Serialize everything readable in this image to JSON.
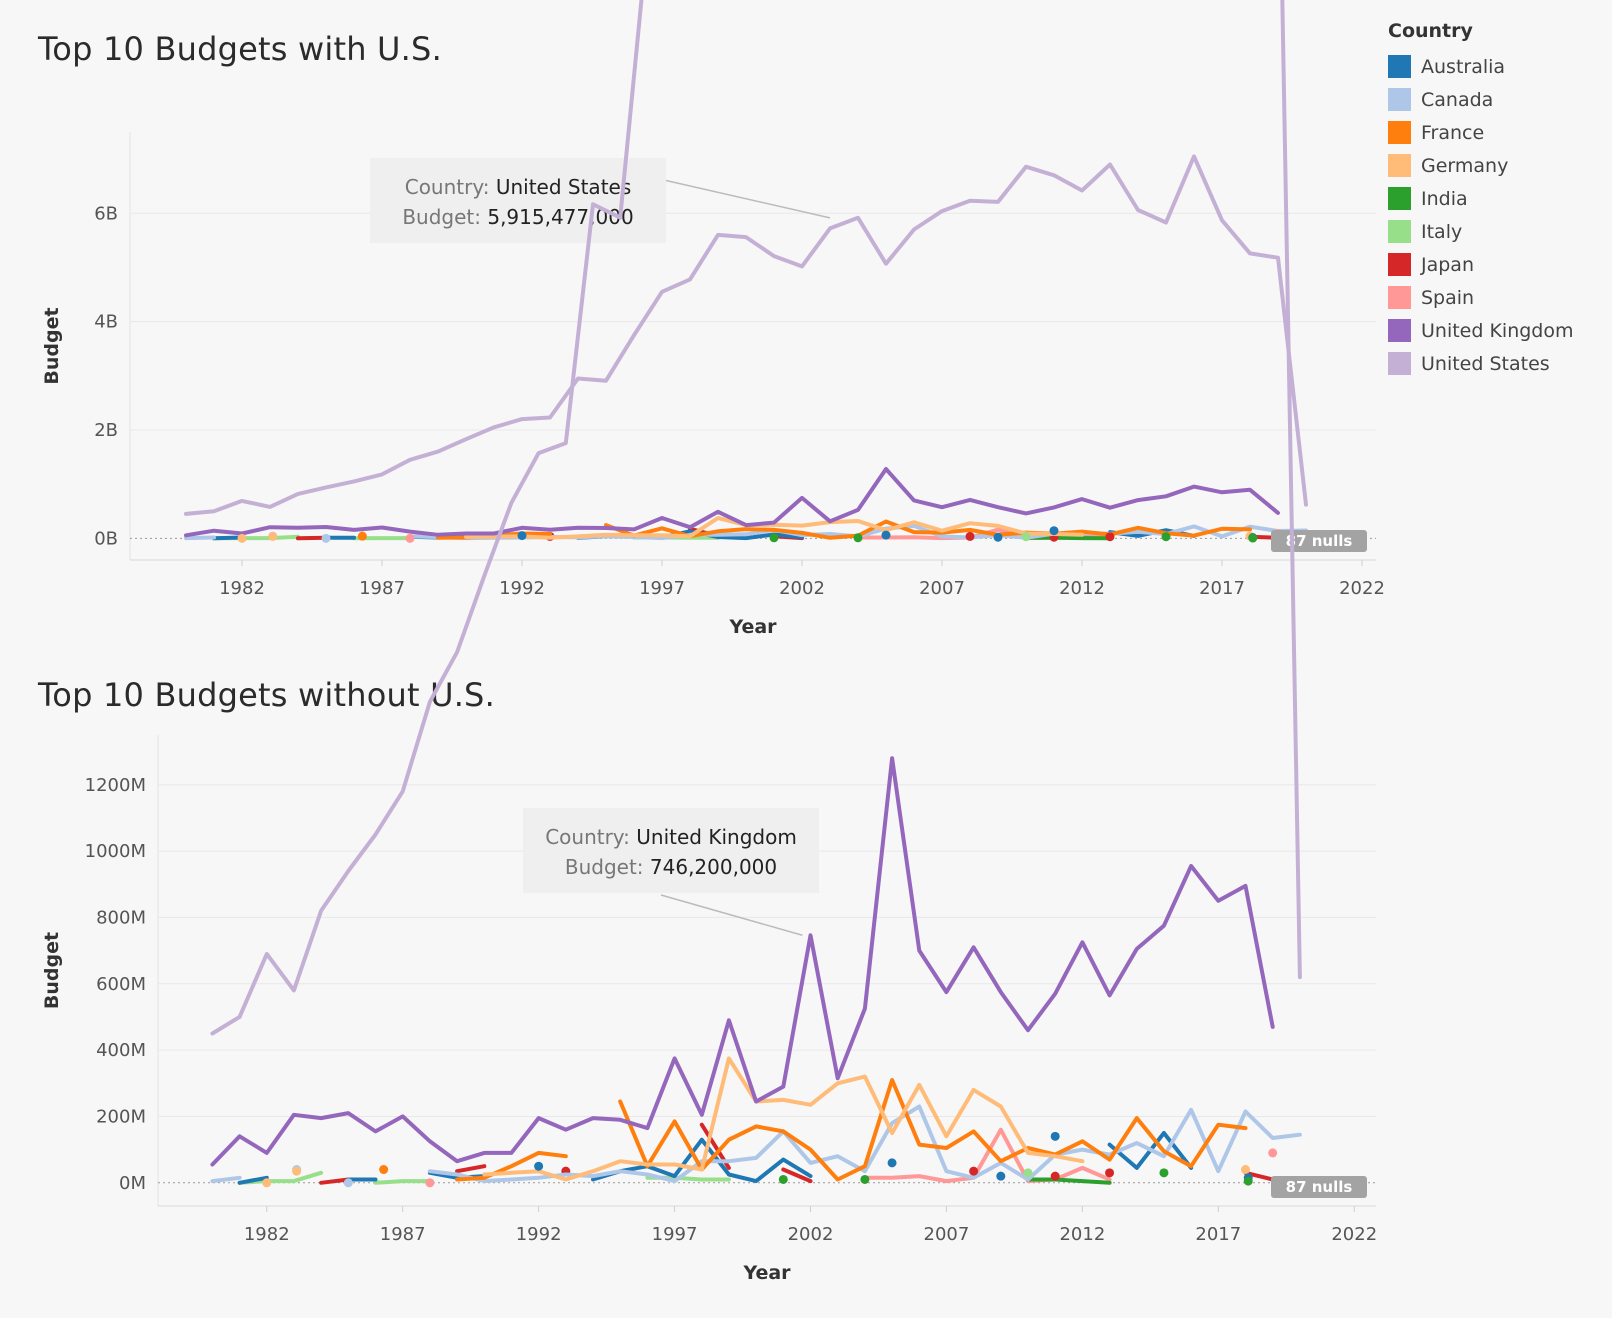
{
  "legend": {
    "title": "Country",
    "items": [
      {
        "label": "Australia",
        "color": "#1f77b4"
      },
      {
        "label": "Canada",
        "color": "#aec7e8"
      },
      {
        "label": "France",
        "color": "#ff7f0e"
      },
      {
        "label": "Germany",
        "color": "#ffbb78"
      },
      {
        "label": "India",
        "color": "#2ca02c"
      },
      {
        "label": "Italy",
        "color": "#98df8a"
      },
      {
        "label": "Japan",
        "color": "#d62728"
      },
      {
        "label": "Spain",
        "color": "#ff9896"
      },
      {
        "label": "United Kingdom",
        "color": "#9467bd"
      },
      {
        "label": "United States",
        "color": "#c5b0d5"
      }
    ]
  },
  "chart_data": [
    {
      "type": "line",
      "title": "Top 10 Budgets with U.S.",
      "xlabel": "Year",
      "ylabel": "Budget",
      "xlim": [
        1978,
        2022.5
      ],
      "ylim": [
        -400000000,
        7500000000
      ],
      "x_ticks": [
        1982,
        1987,
        1992,
        1997,
        2002,
        2007,
        2012,
        2017,
        2022
      ],
      "y_ticks": [
        {
          "value": 0,
          "label": "0B"
        },
        {
          "value": 2000000000,
          "label": "2B"
        },
        {
          "value": 4000000000,
          "label": "4B"
        },
        {
          "value": 6000000000,
          "label": "6B"
        }
      ],
      "nulls_label": "87 nulls",
      "tooltip": {
        "country_key": "Country:",
        "country_value": "United States",
        "budget_key": "Budget:",
        "budget_value": "5,915,477,000",
        "point": [
          2003,
          5915477000
        ]
      },
      "series": [
        {
          "name": "United States",
          "x": [
            1980,
            1981,
            1982,
            1983,
            1984,
            1985,
            1986,
            1987,
            1988,
            1989,
            1990,
            1991,
            1992,
            1993,
            1994,
            1995,
            1996,
            1997,
            1998,
            1999,
            2000,
            2001,
            2002,
            2003,
            2004,
            2005,
            2006,
            2007,
            2008,
            2009,
            2010,
            2011,
            2012,
            2013,
            2014,
            2015,
            2016,
            2017,
            2018,
            2019,
            2020
          ],
          "y": [
            450000000,
            500000000,
            690000000,
            580000000,
            820000000,
            940000000,
            1050000000,
            1180000000,
            1450000000,
            1600000000,
            1830000000,
            2050000000,
            2200000000,
            2230000000,
            2950000000,
            2910000000,
            3750000000,
            4550000000,
            4780000000,
            5600000000,
            5560000000,
            5210000000,
            5020000000,
            5720000000,
            5915477000,
            5070000000,
            5700000000,
            6040000000,
            6230000000,
            6210000000,
            6860000000,
            6700000000,
            6420000000,
            6900000000,
            6060000000,
            5830000000,
            7050000000,
            5870000000,
            5260000000,
            5180000000,
            620000000
          ]
        },
        {
          "name": "United Kingdom",
          "x": [
            1980,
            1981,
            1982,
            1983,
            1984,
            1985,
            1986,
            1987,
            1988,
            1989,
            1990,
            1991,
            1992,
            1993,
            1994,
            1995,
            1996,
            1997,
            1998,
            1999,
            2000,
            2001,
            2002,
            2003,
            2004,
            2005,
            2006,
            2007,
            2008,
            2009,
            2010,
            2011,
            2012,
            2013,
            2014,
            2015,
            2016,
            2017,
            2018,
            2019
          ],
          "y": [
            55000000,
            140000000,
            90000000,
            205000000,
            195000000,
            210000000,
            155000000,
            200000000,
            125000000,
            65000000,
            90000000,
            90000000,
            195000000,
            160000000,
            195000000,
            190000000,
            165000000,
            375000000,
            205000000,
            490000000,
            245000000,
            290000000,
            746200000,
            315000000,
            525000000,
            1280000000,
            700000000,
            575000000,
            710000000,
            575000000,
            460000000,
            570000000,
            725000000,
            565000000,
            705000000,
            775000000,
            955000000,
            850000000,
            895000000,
            470000000
          ]
        },
        {
          "name": "Germany",
          "x": [
            1990,
            1991,
            1992,
            1993,
            1994,
            1995,
            1996,
            1997,
            1998,
            1999,
            2000,
            2001,
            2002,
            2003,
            2004,
            2005,
            2006,
            2007,
            2008,
            2009,
            2010,
            2011,
            2012
          ],
          "y": [
            25000000,
            30000000,
            35000000,
            10000000,
            35000000,
            65000000,
            55000000,
            55000000,
            40000000,
            375000000,
            245000000,
            250000000,
            235000000,
            300000000,
            320000000,
            150000000,
            295000000,
            140000000,
            280000000,
            230000000,
            90000000,
            80000000,
            65000000
          ]
        },
        {
          "name": "France",
          "x": [
            1989,
            1990,
            1991,
            1992,
            1993,
            1995,
            1996,
            1997,
            1998,
            1999,
            2000,
            2001,
            2002,
            2003,
            2004,
            2005,
            2006,
            2007,
            2008,
            2009,
            2010,
            2011,
            2012,
            2013,
            2014,
            2015,
            2016,
            2017,
            2018
          ],
          "y": [
            10000000,
            15000000,
            50000000,
            90000000,
            80000000,
            245000000,
            50000000,
            185000000,
            40000000,
            130000000,
            170000000,
            155000000,
            100000000,
            10000000,
            50000000,
            310000000,
            115000000,
            105000000,
            155000000,
            65000000,
            105000000,
            85000000,
            125000000,
            70000000,
            195000000,
            95000000,
            50000000,
            175000000,
            165000000
          ]
        },
        {
          "name": "Canada",
          "x": [
            1980,
            1981,
            1988,
            1989,
            1990,
            1991,
            1992,
            1993,
            1994,
            1995,
            1996,
            1997,
            1998,
            1999,
            2000,
            2001,
            2002,
            2003,
            2004,
            2005,
            2006,
            2007,
            2008,
            2009,
            2010,
            2011,
            2012,
            2013,
            2014,
            2015,
            2016,
            2017,
            2018,
            2019,
            2020
          ],
          "y": [
            5000000,
            15000000,
            35000000,
            25000000,
            5000000,
            10000000,
            15000000,
            25000000,
            20000000,
            35000000,
            25000000,
            5000000,
            65000000,
            65000000,
            75000000,
            155000000,
            60000000,
            80000000,
            35000000,
            180000000,
            230000000,
            35000000,
            15000000,
            60000000,
            10000000,
            85000000,
            100000000,
            85000000,
            120000000,
            80000000,
            220000000,
            35000000,
            215000000,
            135000000,
            145000000
          ]
        },
        {
          "name": "Australia",
          "x": [
            1981,
            1982,
            1985,
            1986,
            1988,
            1989,
            1990,
            1994,
            1995,
            1996,
            1997,
            1998,
            1999,
            2000,
            2001,
            2002,
            2013,
            2014,
            2015,
            2016
          ],
          "y": [
            0,
            15000000,
            10000000,
            10000000,
            30000000,
            15000000,
            20000000,
            10000000,
            35000000,
            50000000,
            20000000,
            130000000,
            25000000,
            5000000,
            70000000,
            20000000,
            115000000,
            45000000,
            150000000,
            45000000
          ]
        },
        {
          "name": "Japan",
          "x": [
            1984,
            1985,
            1989,
            1990,
            1993,
            1998,
            1999,
            2001,
            2002,
            2011,
            2018,
            2019
          ],
          "y": [
            0,
            10000000,
            35000000,
            50000000,
            35000000,
            175000000,
            45000000,
            40000000,
            5000000,
            20000000,
            30000000,
            10000000
          ]
        },
        {
          "name": "Italy",
          "x": [
            1981,
            1982,
            1983,
            1984,
            1986,
            1987,
            1988,
            1996,
            1997,
            1998,
            1999
          ],
          "y": [
            0,
            5000000,
            5000000,
            30000000,
            0,
            5000000,
            5000000,
            15000000,
            15000000,
            10000000,
            10000000
          ]
        },
        {
          "name": "India",
          "x": [
            2010,
            2011,
            2012,
            2013
          ],
          "y": [
            10000000,
            10000000,
            5000000,
            0
          ]
        },
        {
          "name": "Spain",
          "x": [
            2004,
            2005,
            2006,
            2007,
            2008,
            2009,
            2010,
            2011,
            2012,
            2013
          ],
          "y": [
            15000000,
            15000000,
            20000000,
            5000000,
            15000000,
            160000000,
            5000000,
            10000000,
            45000000,
            10000000
          ]
        }
      ],
      "points": [
        {
          "name": "France",
          "x": 1986.3,
          "y": 40000000
        },
        {
          "name": "Canada",
          "x": 1983.1,
          "y": 40000000
        },
        {
          "name": "Canada",
          "x": 1985.0,
          "y": 0
        },
        {
          "name": "Germany",
          "x": 1983.1,
          "y": 35000000
        },
        {
          "name": "Germany",
          "x": 1982.0,
          "y": 0
        },
        {
          "name": "Spain",
          "x": 1988.0,
          "y": 0
        },
        {
          "name": "Australia",
          "x": 1992.0,
          "y": 50000000
        },
        {
          "name": "India",
          "x": 2001.0,
          "y": 10000000
        },
        {
          "name": "India",
          "x": 2004.0,
          "y": 10000000
        },
        {
          "name": "Australia",
          "x": 2005.0,
          "y": 60000000
        },
        {
          "name": "Japan",
          "x": 2008.0,
          "y": 35000000
        },
        {
          "name": "Australia",
          "x": 2009.0,
          "y": 20000000
        },
        {
          "name": "Italy",
          "x": 2010.0,
          "y": 30000000
        },
        {
          "name": "Australia",
          "x": 2011.0,
          "y": 140000000
        },
        {
          "name": "Japan",
          "x": 2013.0,
          "y": 30000000
        },
        {
          "name": "India",
          "x": 2015.0,
          "y": 30000000
        },
        {
          "name": "Germany",
          "x": 2018.0,
          "y": 40000000
        },
        {
          "name": "Australia",
          "x": 2018.1,
          "y": 15000000
        },
        {
          "name": "India",
          "x": 2018.1,
          "y": 5000000
        },
        {
          "name": "Spain",
          "x": 2019.0,
          "y": 90000000
        }
      ]
    },
    {
      "type": "line",
      "title": "Top 10 Budgets without U.S.",
      "xlabel": "Year",
      "ylabel": "Budget",
      "xlim": [
        1978,
        2022.8
      ],
      "ylim": [
        -70000000,
        1350000000
      ],
      "x_ticks": [
        1982,
        1987,
        1992,
        1997,
        2002,
        2007,
        2012,
        2017,
        2022
      ],
      "y_ticks": [
        {
          "value": 0,
          "label": "0M"
        },
        {
          "value": 200000000,
          "label": "200M"
        },
        {
          "value": 400000000,
          "label": "400M"
        },
        {
          "value": 600000000,
          "label": "600M"
        },
        {
          "value": 800000000,
          "label": "800M"
        },
        {
          "value": 1000000000,
          "label": "1000M"
        },
        {
          "value": 1200000000,
          "label": "1200M"
        }
      ],
      "nulls_label": "87 nulls",
      "tooltip": {
        "country_key": "Country:",
        "country_value": "United Kingdom",
        "budget_key": "Budget:",
        "budget_value": "746,200,000",
        "point": [
          2001.7,
          746200000
        ]
      },
      "series": "same-as-first",
      "points": "same-as-first"
    }
  ]
}
